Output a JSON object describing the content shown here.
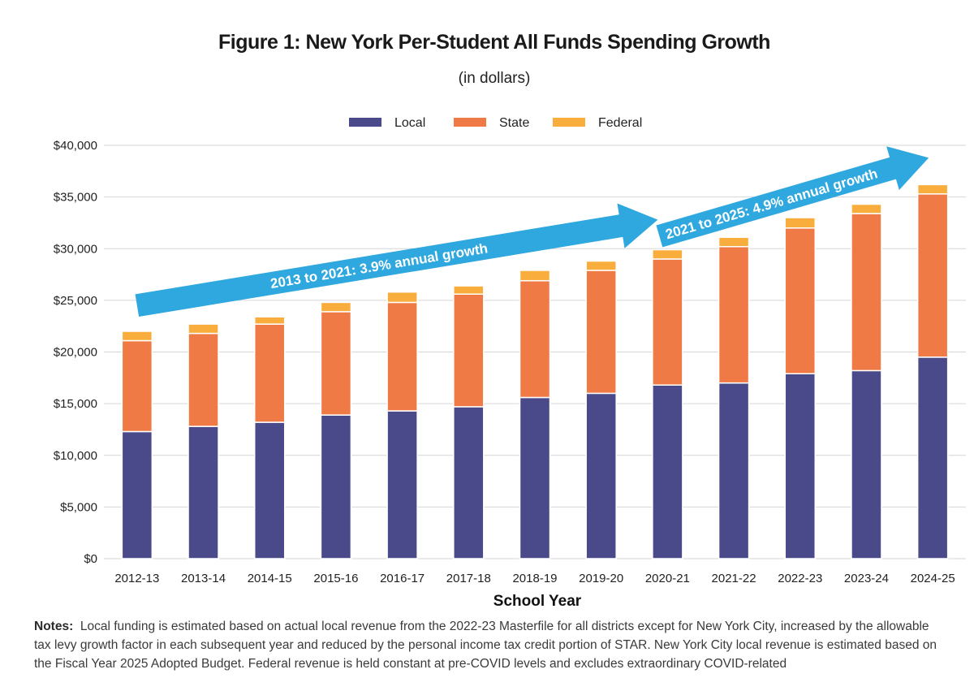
{
  "title": "Figure 1: New York Per-Student All Funds Spending Growth",
  "subtitle": "(in dollars)",
  "notes": {
    "label": "Notes:",
    "text": "Local funding is estimated based on actual local revenue from the 2022-23 Masterfile for all districts except for New York City, increased by the allowable tax levy growth factor in each subsequent year and reduced by the personal income tax credit portion of STAR. New York City local revenue is estimated based on the Fiscal Year 2025 Adopted Budget. Federal revenue is held constant at pre-COVID levels and excludes extraordinary COVID-related"
  },
  "chart_data": {
    "type": "bar",
    "stacked": true,
    "xlabel": "School Year",
    "ylabel": "",
    "ylim": [
      0,
      40000
    ],
    "yticks": [
      0,
      5000,
      10000,
      15000,
      20000,
      25000,
      30000,
      35000,
      40000
    ],
    "ytick_labels": [
      "$0",
      "$5,000",
      "$10,000",
      "$15,000",
      "$20,000",
      "$25,000",
      "$30,000",
      "$35,000",
      "$40,000"
    ],
    "grid": true,
    "legend": "top-center",
    "categories": [
      "2012-13",
      "2013-14",
      "2014-15",
      "2015-16",
      "2016-17",
      "2017-18",
      "2018-19",
      "2019-20",
      "2020-21",
      "2021-22",
      "2022-23",
      "2023-24",
      "2024-25"
    ],
    "series": [
      {
        "name": "Local",
        "color": "#4a4a8a",
        "values": [
          12300,
          12800,
          13200,
          13900,
          14300,
          14700,
          15600,
          16000,
          16800,
          17000,
          17900,
          18200,
          19500
        ]
      },
      {
        "name": "State",
        "color": "#f07a45",
        "values": [
          8800,
          9000,
          9500,
          10000,
          10500,
          10900,
          11300,
          11900,
          12200,
          13200,
          14100,
          15200,
          15800
        ]
      },
      {
        "name": "Federal",
        "color": "#f8ad3c",
        "values": [
          900,
          900,
          700,
          900,
          1000,
          800,
          1000,
          900,
          900,
          900,
          1000,
          900,
          900
        ]
      }
    ],
    "annotations": [
      {
        "text": "2013 to 2021: 3.9% annual growth",
        "color": "#2ea8df",
        "from": {
          "x": "2012-13",
          "y": 24500
        },
        "to": {
          "x": "2020-21",
          "y": 32800
        }
      },
      {
        "text": "2021 to 2025: 4.9% annual growth",
        "color": "#2ea8df",
        "from": {
          "x": "2020-21",
          "y": 31200
        },
        "to": {
          "x": "2024-25",
          "y": 38800
        }
      }
    ]
  }
}
